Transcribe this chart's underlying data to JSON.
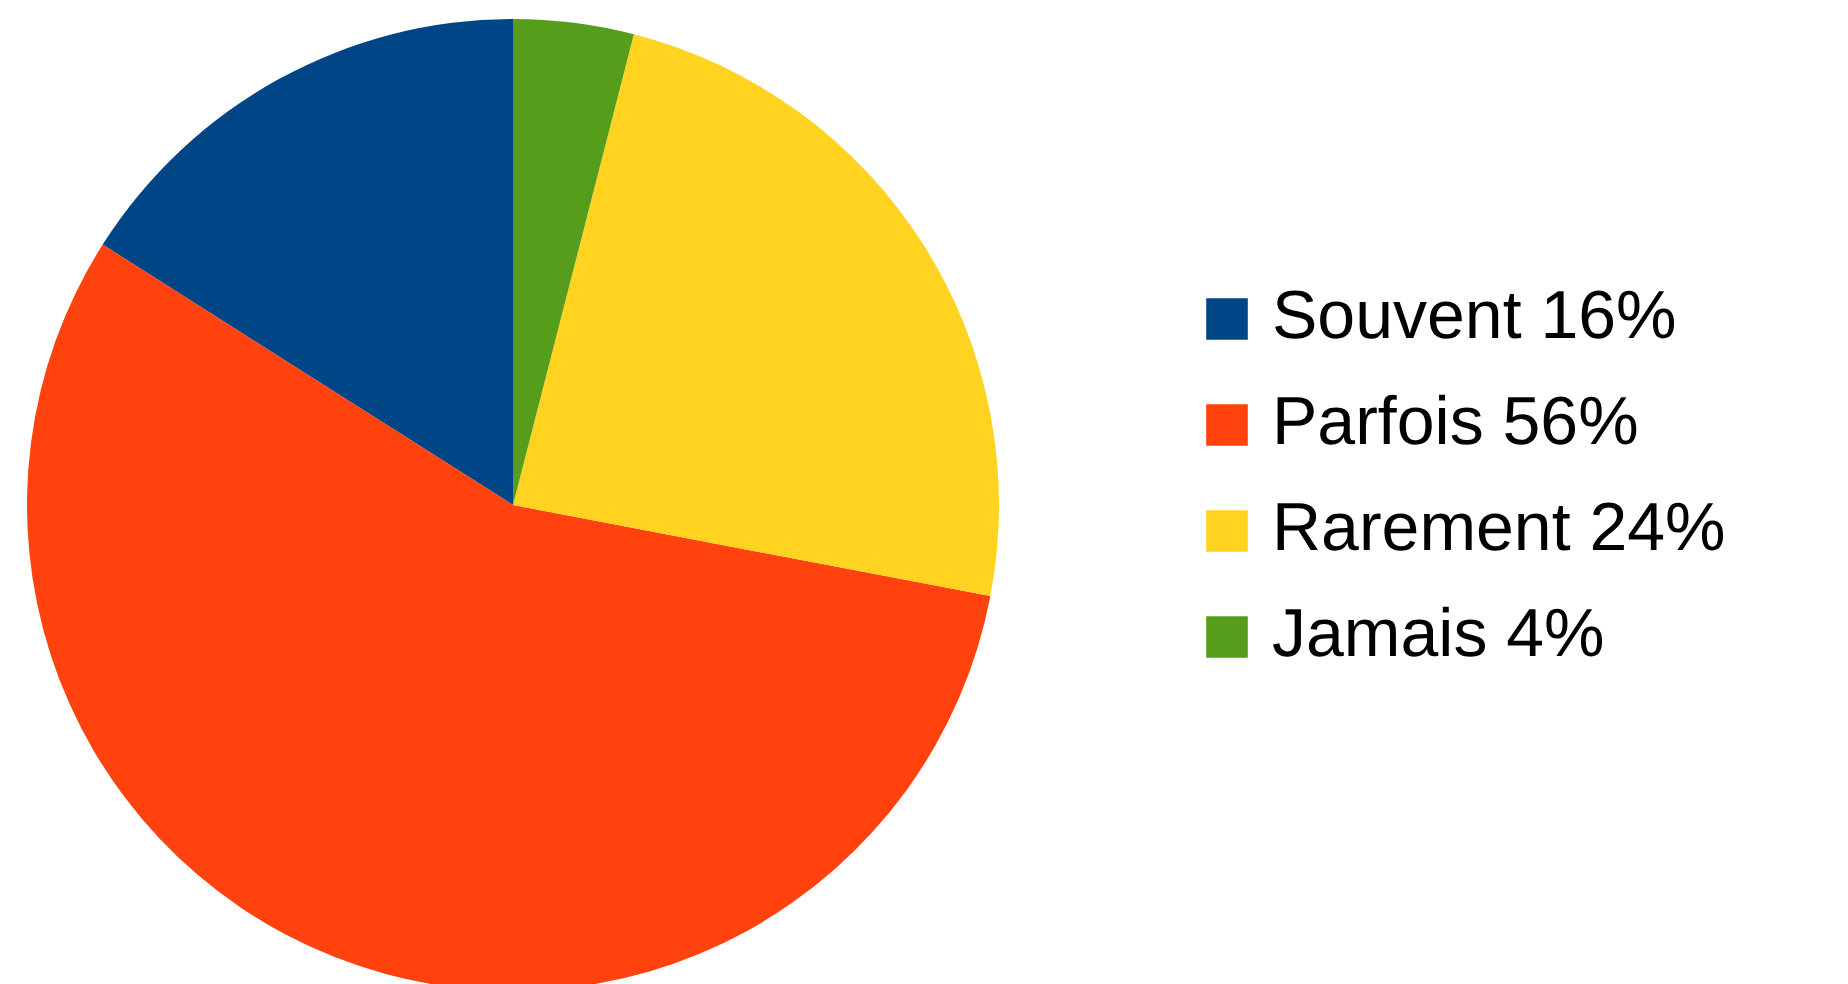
{
  "chart_data": {
    "type": "pie",
    "categories": [
      "Souvent 16%",
      "Parfois 56%",
      "Rarement 24%",
      "Jamais 4%"
    ],
    "values": [
      16,
      56,
      24,
      4
    ],
    "colors": [
      "#004586",
      "#ff420e",
      "#ffd320",
      "#579d1c"
    ],
    "legend": "right"
  }
}
